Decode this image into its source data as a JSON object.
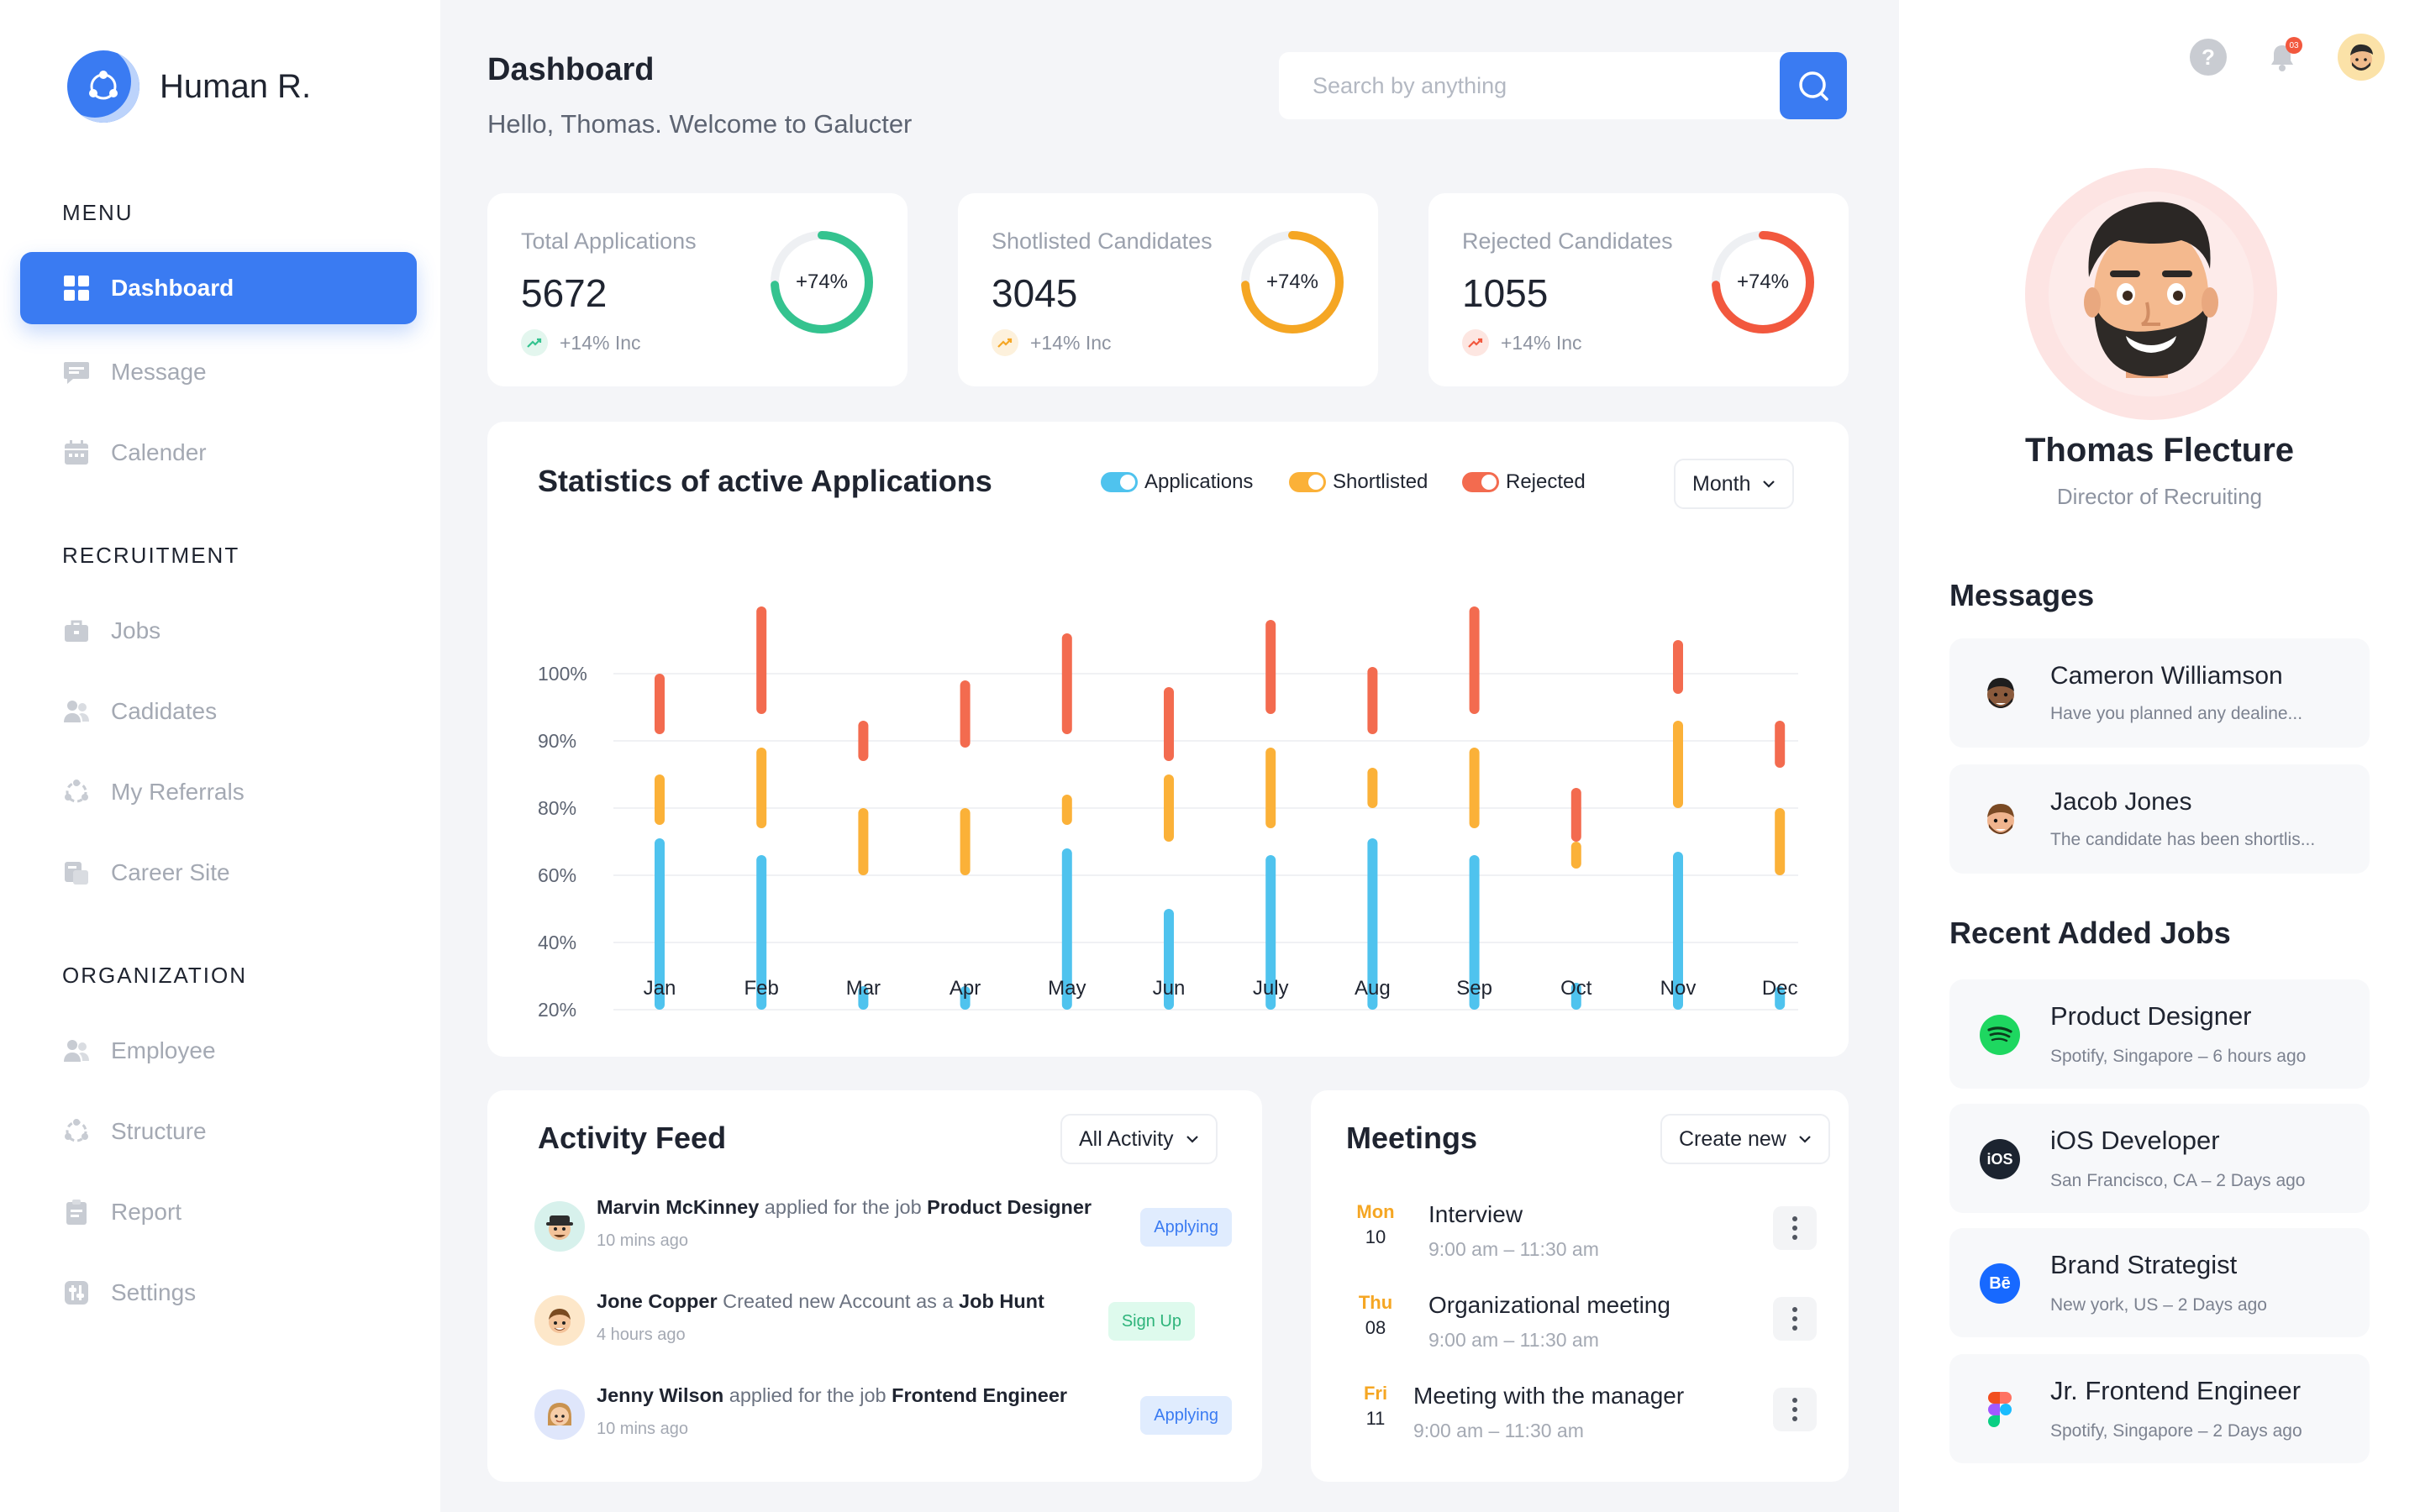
{
  "brand": {
    "name": "Human R."
  },
  "menu": {
    "section_menu": "MENU",
    "dashboard": "Dashboard",
    "message": "Message",
    "calender": "Calender",
    "section_recruitment": "RECRUITMENT",
    "jobs": "Jobs",
    "candidates": "Cadidates",
    "referrals": "My Referrals",
    "career_site": "Career Site",
    "section_organization": "ORGANIZATION",
    "employee": "Employee",
    "structure": "Structure",
    "report": "Report",
    "settings": "Settings"
  },
  "header": {
    "title": "Dashboard",
    "subtitle": "Hello, Thomas. Welcome to Galucter",
    "search_placeholder": "Search by anything"
  },
  "stats": [
    {
      "label": "Total Applications",
      "value": "5672",
      "ring": "+74%",
      "ring_pct": 74,
      "inc": "+14% Inc",
      "color": "#34c38f",
      "light": "#e3f6ee"
    },
    {
      "label": "Shotlisted Candidates",
      "value": "3045",
      "ring": "+74%",
      "ring_pct": 74,
      "inc": "+14% Inc",
      "color": "#f5a623",
      "light": "#fdf1dc"
    },
    {
      "label": "Rejected Candidates",
      "value": "1055",
      "ring": "+74%",
      "ring_pct": 74,
      "inc": "+14% Inc",
      "color": "#f2583e",
      "light": "#fde6e1"
    }
  ],
  "chart_panel": {
    "title": "Statistics of active Applications",
    "legend": [
      "Applications",
      "Shortlisted",
      "Rejected"
    ],
    "period": "Month"
  },
  "chart_data": {
    "type": "bar",
    "title": "Statistics of active Applications",
    "categories": [
      "Jan",
      "Feb",
      "Mar",
      "Apr",
      "May",
      "Jun",
      "July",
      "Aug",
      "Sep",
      "Oct",
      "Nov",
      "Dec"
    ],
    "y_ticks": [
      "100%",
      "90%",
      "80%",
      "60%",
      "40%",
      "20%"
    ],
    "series": [
      {
        "name": "Applications",
        "color": "#4fc3ee",
        "ranges": [
          [
            20,
            71
          ],
          [
            20,
            66
          ],
          [
            20,
            27
          ],
          [
            20,
            27
          ],
          [
            20,
            68
          ],
          [
            20,
            50
          ],
          [
            20,
            66
          ],
          [
            20,
            71
          ],
          [
            20,
            66
          ],
          [
            20,
            28
          ],
          [
            20,
            67
          ],
          [
            20,
            27
          ]
        ]
      },
      {
        "name": "Shortlisted",
        "color": "#fbb138",
        "ranges": [
          [
            75,
            85
          ],
          [
            74,
            89
          ],
          [
            60,
            80
          ],
          [
            60,
            80
          ],
          [
            75,
            82
          ],
          [
            70,
            85
          ],
          [
            74,
            89
          ],
          [
            80,
            86
          ],
          [
            74,
            89
          ],
          [
            62,
            70
          ],
          [
            80,
            93
          ],
          [
            60,
            80
          ]
        ]
      },
      {
        "name": "Rejected",
        "color": "#f36b4f",
        "ranges": [
          [
            91,
            100
          ],
          [
            94,
            110
          ],
          [
            87,
            93
          ],
          [
            89,
            99
          ],
          [
            91,
            106
          ],
          [
            87,
            98
          ],
          [
            94,
            108
          ],
          [
            91,
            101
          ],
          [
            94,
            110
          ],
          [
            70,
            83
          ],
          [
            97,
            105
          ],
          [
            86,
            93
          ]
        ]
      }
    ]
  },
  "activity": {
    "title": "Activity Feed",
    "filter": "All Activity",
    "items": [
      {
        "name": "Marvin McKinney",
        "mid": " applied for the job ",
        "target": "Product Designer",
        "time": "10 mins ago",
        "status": "Applying",
        "bg": "#e0ecfe",
        "fg": "#3a7bf2",
        "avatar_bg": "#d7f1ec"
      },
      {
        "name": "Jone Copper",
        "mid": " Created new Account as a ",
        "target": "Job Hunt",
        "time": "4 hours ago",
        "status": "Sign Up",
        "bg": "#defaed",
        "fg": "#2db37a",
        "avatar_bg": "#fde7c9"
      },
      {
        "name": "Jenny Wilson",
        "mid": "  applied for the job ",
        "target": "Frontend Engineer",
        "time": "10 mins ago",
        "status": "Applying",
        "bg": "#e0ecfe",
        "fg": "#3a7bf2",
        "avatar_bg": "#dfe6fb"
      }
    ]
  },
  "meetings": {
    "title": "Meetings",
    "create": "Create new",
    "items": [
      {
        "day": "Mon",
        "num": "10",
        "title": "Interview",
        "time": "9:00 am – 11:30 am"
      },
      {
        "day": "Thu",
        "num": "08",
        "title": "Organizational meeting",
        "time": "9:00 am – 11:30 am"
      },
      {
        "day": "Fri",
        "num": "11",
        "title": "Meeting with the manager",
        "time": "9:00 am – 11:30 am"
      }
    ]
  },
  "topbar": {
    "notifications_badge": "03"
  },
  "profile": {
    "name": "Thomas Flecture",
    "role": "Director of Recruiting"
  },
  "messages": {
    "title": "Messages",
    "items": [
      {
        "name": "Cameron Williamson",
        "text": "Have you planned any dealine..."
      },
      {
        "name": "Jacob Jones",
        "text": "The candidate has been shortlis..."
      }
    ]
  },
  "jobs": {
    "title": "Recent Added Jobs",
    "items": [
      {
        "title": "Product Designer",
        "meta": "Spotify, Singapore  –  6 hours ago",
        "logo": "spotify-logo",
        "logo_bg": "#1ed760"
      },
      {
        "title": "iOS Developer",
        "meta": "San Francisco, CA  –  2 Days ago",
        "logo": "ios-logo",
        "logo_bg": "#1c2430",
        "logo_text": "iOS"
      },
      {
        "title": "Brand Strategist",
        "meta": "New york, US  –  2 Days ago",
        "logo": "behance-logo",
        "logo_bg": "#1769ff",
        "logo_text": "Bē"
      },
      {
        "title": "Jr. Frontend Engineer",
        "meta": "Spotify, Singapore  –  2 Days ago",
        "logo": "figma-logo",
        "logo_bg": "#ffffff"
      }
    ]
  }
}
